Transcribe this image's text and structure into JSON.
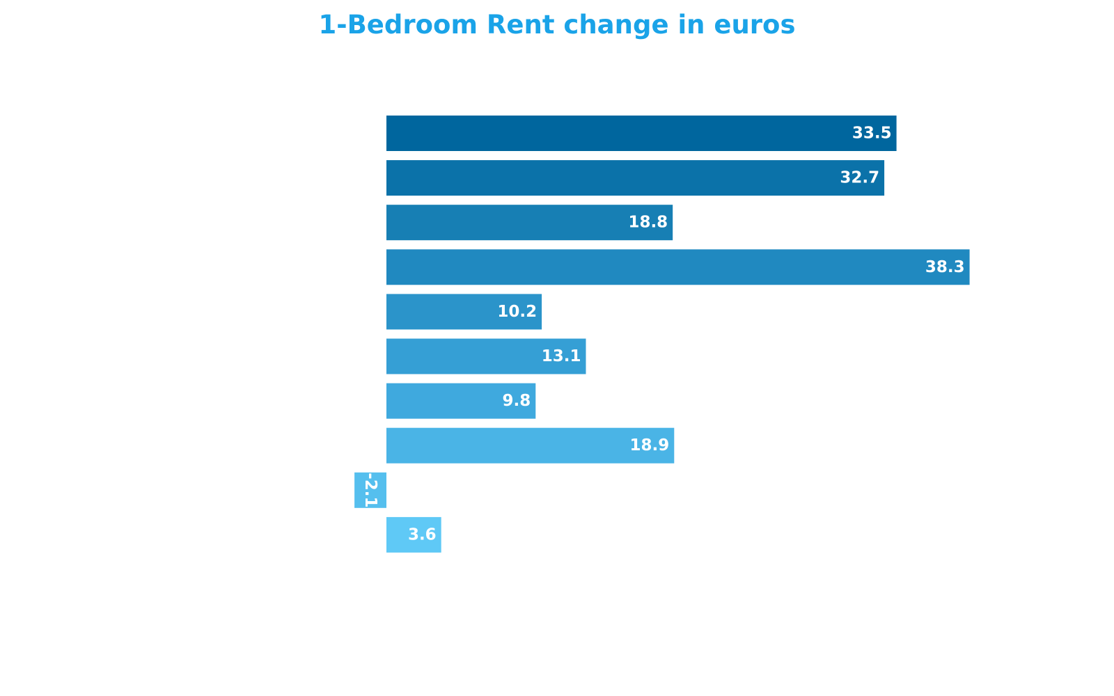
{
  "chart_data": {
    "type": "bar",
    "orientation": "horizontal",
    "title": "1-Bedroom Rent change in euros",
    "xlabel": "",
    "ylabel": "",
    "values": [
      33.5,
      32.7,
      18.8,
      38.3,
      10.2,
      13.1,
      9.8,
      18.9,
      -2.1,
      3.6
    ],
    "value_labels": [
      "33.5",
      "32.7",
      "18.8",
      "38.3",
      "10.2",
      "13.1",
      "9.8",
      "18.9",
      "-2.1",
      "3.6"
    ],
    "xlim": [
      -2.1,
      38.3
    ],
    "grid": false,
    "legend": "none",
    "bar_colors": [
      "#00669e",
      "#0b72a9",
      "#177fb4",
      "#2089c0",
      "#2b94ca",
      "#359fd5",
      "#3fa9de",
      "#4ab4e6",
      "#55bfee",
      "#5fc9f6"
    ]
  },
  "colors": {
    "title": "#1aa3e8",
    "label": "#ffffff",
    "background": "#ffffff"
  }
}
